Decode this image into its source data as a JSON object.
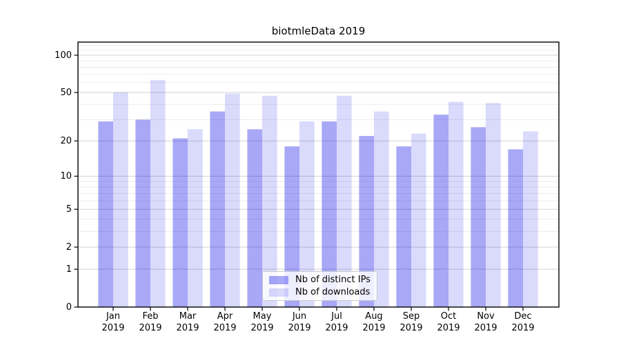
{
  "figure": {
    "background": "#ffffff"
  },
  "chart_data": {
    "type": "bar",
    "title": "biotmleData 2019",
    "categories": [
      "Jan 2019",
      "Feb 2019",
      "Mar 2019",
      "Apr 2019",
      "May 2019",
      "Jun 2019",
      "Jul 2019",
      "Aug 2019",
      "Sep 2019",
      "Oct 2019",
      "Nov 2019",
      "Dec 2019"
    ],
    "series": [
      {
        "name": "Nb of distinct IPs",
        "color": "rgba(0,0,232,0.34)",
        "values": [
          29,
          30,
          21,
          35,
          25,
          18,
          29,
          22,
          18,
          33,
          26,
          17
        ]
      },
      {
        "name": "Nb of downloads",
        "color": "rgba(0,0,232,0.145)",
        "values": [
          50,
          63,
          25,
          49,
          47,
          29,
          47,
          35,
          23,
          42,
          41,
          24
        ]
      }
    ],
    "yscale": "log1p",
    "ylim": [
      0,
      127
    ],
    "yticks": [
      0,
      1,
      2,
      5,
      10,
      20,
      50,
      100
    ],
    "minor_yticks": [
      3,
      4,
      6,
      7,
      8,
      9,
      30,
      40,
      60,
      70,
      80,
      90,
      110,
      120
    ],
    "grid": {
      "major_color": "#d2d2d2",
      "minor_color": "#ececec"
    },
    "axis_color": "#000000",
    "legend_position": "lower center"
  }
}
